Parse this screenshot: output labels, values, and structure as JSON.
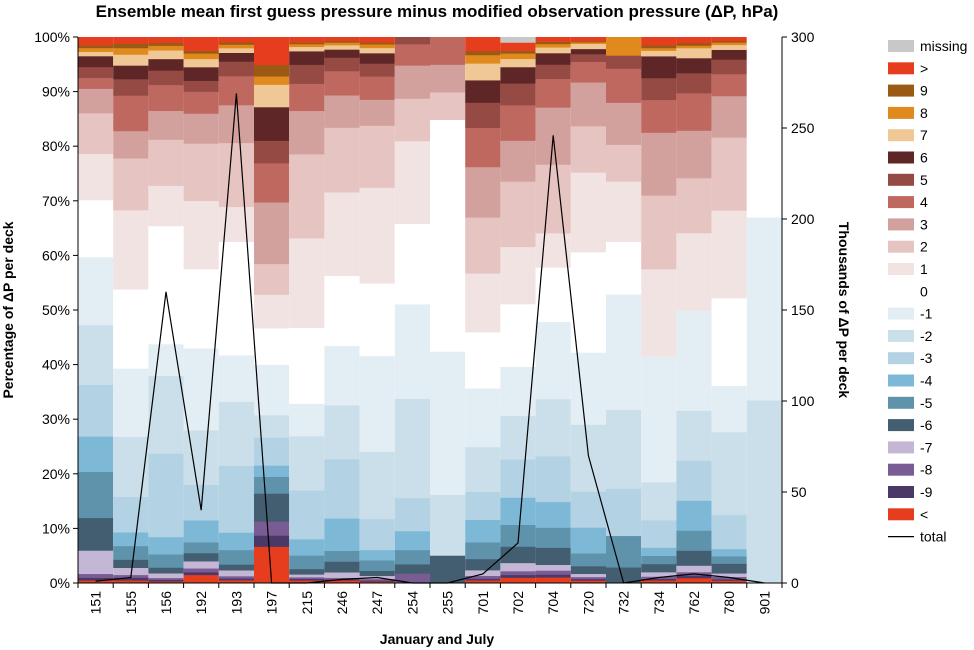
{
  "chart_data": {
    "type": "stacked-bar-with-line",
    "title": "Ensemble mean first guess pressure minus modified observation pressure (ΔP, hPa)",
    "xlabel": "January and July",
    "ylabel_left": "Percentage of ΔP per deck",
    "ylabel_right": "Thousands of ΔP per deck",
    "ylim_left": [
      0,
      100
    ],
    "ylim_right": [
      0,
      300
    ],
    "yticks_left": [
      "0%",
      "10%",
      "20%",
      "30%",
      "40%",
      "50%",
      "60%",
      "70%",
      "80%",
      "90%",
      "100%"
    ],
    "yticks_right": [
      "0",
      "50",
      "100",
      "150",
      "200",
      "250",
      "300"
    ],
    "categories": [
      "151",
      "155",
      "156",
      "192",
      "193",
      "197",
      "215",
      "246",
      "247",
      "254",
      "255",
      "701",
      "702",
      "704",
      "720",
      "732",
      "734",
      "762",
      "780",
      "901"
    ],
    "stack_order": [
      "<",
      "-9",
      "-8",
      "-7",
      "-6",
      "-5",
      "-4",
      "-3",
      "-2",
      "-1",
      "0",
      "1",
      "2",
      "3",
      "4",
      "5",
      "6",
      "7",
      "8",
      "9",
      ">",
      "missing"
    ],
    "legend_order": [
      "missing",
      ">",
      "9",
      "8",
      "7",
      "6",
      "5",
      "4",
      "3",
      "2",
      "1",
      "0",
      "-1",
      "-2",
      "-3",
      "-4",
      "-5",
      "-6",
      "-7",
      "-8",
      "-9",
      "<",
      "total"
    ],
    "colors": {
      "missing": "#c8c8c8",
      ">": "#e63d1e",
      "9": "#9a5a14",
      "8": "#e08a1e",
      "7": "#f0c896",
      "6": "#5e2626",
      "5": "#954a44",
      "4": "#bf6860",
      "3": "#d3a19d",
      "2": "#e6c4c2",
      "1": "#f2e3e3",
      "0": "#ffffff",
      "-1": "#e3eef4",
      "-2": "#cbdfea",
      "-3": "#b3d2e4",
      "-4": "#7db8d6",
      "-5": "#5f93ab",
      "-6": "#435e70",
      "-7": "#c4b7d6",
      "-8": "#7a5c94",
      "-9": "#4a3866",
      "<": "#e63d1e",
      "total": "#000000"
    },
    "series": [
      {
        "name": "<",
        "values": [
          0.5,
          0.5,
          0.3,
          1.5,
          0.5,
          6.5,
          0.5,
          0.5,
          0.3,
          0,
          0,
          0.5,
          1,
          1,
          0.5,
          0,
          0.5,
          1,
          0.5,
          0
        ]
      },
      {
        "name": "-9",
        "values": [
          0.5,
          0.5,
          0.3,
          0.5,
          0.3,
          2,
          0.3,
          0.2,
          0.2,
          0,
          0,
          0.3,
          0.5,
          0.5,
          0.3,
          0,
          0.3,
          0.5,
          0.3,
          0
        ]
      },
      {
        "name": "-8",
        "values": [
          0.7,
          0.5,
          0.3,
          0.7,
          0.4,
          2.5,
          0.3,
          0.3,
          0.3,
          2,
          0,
          0.5,
          0.7,
          0.7,
          0.4,
          0,
          0.4,
          0.7,
          0.5,
          0
        ]
      },
      {
        "name": "-7",
        "values": [
          4.3,
          1.3,
          0.8,
          1.3,
          1,
          0,
          0.5,
          1,
          0.6,
          0,
          0,
          1,
          1.5,
          1,
          0.6,
          0,
          0.8,
          1.3,
          0.7,
          0
        ]
      },
      {
        "name": "-6",
        "values": [
          6,
          1.5,
          1,
          1.5,
          1,
          5,
          1,
          2,
          1,
          2,
          5,
          2,
          3,
          3,
          1.5,
          3,
          1.5,
          3,
          2,
          0
        ]
      },
      {
        "name": "-5",
        "values": [
          8.5,
          2.5,
          2.3,
          2,
          2.5,
          3,
          2.5,
          2,
          2,
          3,
          0,
          3,
          4,
          3.5,
          2.5,
          6,
          1.5,
          4,
          1.5,
          0
        ]
      },
      {
        "name": "-4",
        "values": [
          6.5,
          2.5,
          3,
          4,
          3,
          2,
          3,
          6,
          2,
          4,
          0,
          4,
          5,
          4.5,
          5,
          0,
          1.5,
          6,
          1.5,
          0
        ]
      },
      {
        "name": "-3",
        "values": [
          9.5,
          6.5,
          14.5,
          6.5,
          11.5,
          5,
          9,
          11,
          6,
          7,
          0,
          5,
          7,
          8,
          7,
          9,
          5,
          8,
          7,
          0
        ]
      },
      {
        "name": "-2",
        "values": [
          11,
          11,
          13.5,
          10,
          11,
          4,
          10,
          10,
          13,
          21,
          11,
          8,
          8,
          10,
          13,
          15,
          7,
          10,
          17,
          33.5
        ]
      },
      {
        "name": "-1",
        "values": [
          12.5,
          12.5,
          5.5,
          15,
          8,
          9,
          6,
          11,
          18.5,
          20,
          26,
          10.5,
          9,
          13.5,
          14,
          22,
          23,
          20,
          9.5,
          33.5
        ]
      },
      {
        "name": "0",
        "values": [
          10.5,
          14.5,
          20.5,
          14.5,
          19.5,
          6.5,
          14,
          13,
          14,
          17,
          42,
          10,
          11.5,
          9.5,
          19.5,
          10,
          0,
          0,
          18,
          33
        ]
      },
      {
        "name": "1",
        "values": [
          8.5,
          14.5,
          7,
          12.5,
          6,
          6,
          16.5,
          15.5,
          18.5,
          17.5,
          0,
          10.5,
          10.5,
          6,
          15.5,
          11.5,
          16,
          15.5,
          18,
          0
        ]
      },
      {
        "name": "2",
        "values": [
          7.5,
          9.5,
          8,
          10.5,
          11,
          5.5,
          15.5,
          12,
          12,
          9,
          5,
          10,
          12,
          12,
          9,
          7,
          13.5,
          11,
          15,
          0
        ]
      },
      {
        "name": "3",
        "values": [
          4.5,
          5,
          5,
          5.5,
          6.5,
          11,
          8,
          6,
          5,
          7,
          5,
          9,
          7.5,
          10,
          8.5,
          8,
          11.5,
          9.5,
          8.5,
          0
        ]
      },
      {
        "name": "4",
        "values": [
          2,
          6.5,
          4.5,
          4,
          5,
          7,
          5,
          4.5,
          4.5,
          4.5,
          5,
          7,
          6.5,
          5,
          4,
          6.5,
          6,
          7.5,
          4.5,
          0
        ]
      },
      {
        "name": "5",
        "values": [
          2,
          3,
          2.5,
          2,
          2.5,
          4,
          3.5,
          2.5,
          2.5,
          1.5,
          0,
          4.5,
          4,
          2.5,
          1.5,
          2.5,
          4,
          4,
          3,
          0
        ]
      },
      {
        "name": "6",
        "values": [
          2,
          2.5,
          2,
          2.5,
          1.5,
          6,
          2.5,
          1.5,
          2,
          0,
          0,
          4,
          3,
          2,
          1,
          0,
          4,
          3,
          2,
          0
        ]
      },
      {
        "name": "7",
        "values": [
          0.8,
          2,
          1.5,
          1.5,
          0.8,
          4,
          0.8,
          0.8,
          1,
          0,
          0,
          3,
          1.5,
          1,
          1,
          0,
          1,
          2,
          1,
          0
        ]
      },
      {
        "name": "8",
        "values": [
          0.7,
          1.2,
          0.8,
          1,
          0.6,
          1.5,
          0.5,
          0.5,
          0.7,
          0,
          0,
          1.5,
          1,
          0.6,
          0.3,
          3.5,
          0.5,
          0.5,
          0.5,
          0
        ]
      },
      {
        "name": "9",
        "values": [
          0.5,
          0.8,
          0.5,
          0.5,
          0.4,
          2,
          0.3,
          0.3,
          0.4,
          0,
          0,
          0.7,
          0.5,
          0.4,
          0.2,
          0,
          0.5,
          0.5,
          0.3,
          0
        ]
      },
      {
        "name": ">",
        "values": [
          1.5,
          1.2,
          1,
          2.5,
          0.9,
          5,
          1,
          0.7,
          1,
          0,
          0,
          2.5,
          1.5,
          0.8,
          0.8,
          0,
          1.5,
          1.2,
          0.8,
          0
        ]
      },
      {
        "name": "missing",
        "values": [
          0,
          0,
          0,
          0,
          0,
          0,
          0,
          0,
          0,
          0,
          0,
          0,
          1,
          0,
          0,
          0,
          0,
          0,
          0,
          0
        ]
      }
    ],
    "total_thousands": [
      1,
      3,
      160,
      40,
      269,
      0,
      0,
      2,
      3,
      0,
      0,
      5,
      22,
      246,
      70,
      0,
      3,
      5,
      3,
      0
    ]
  }
}
